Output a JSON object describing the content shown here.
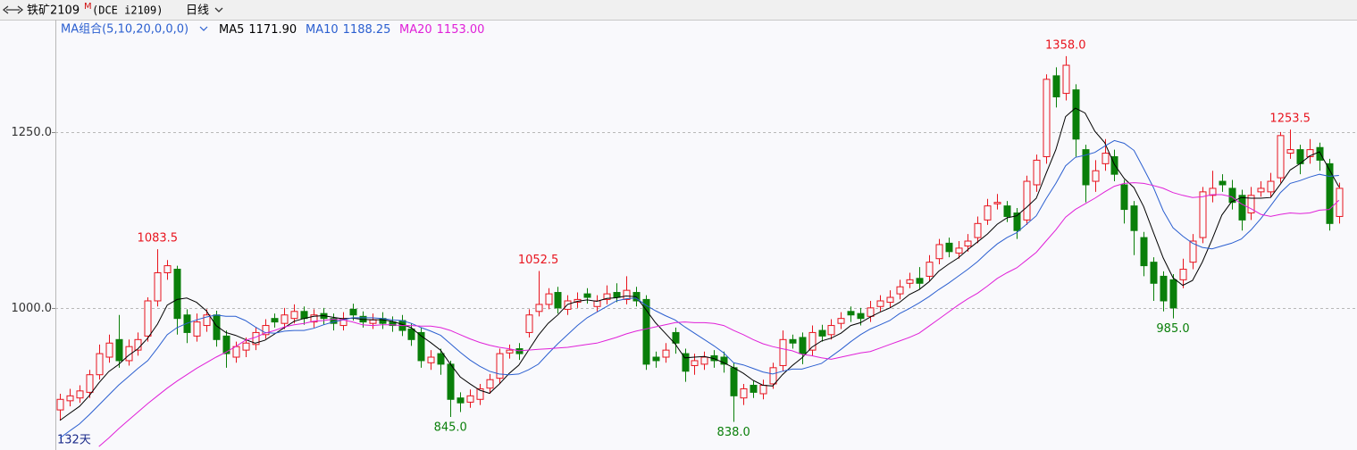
{
  "header": {
    "title": "铁矿2109",
    "badge": "M",
    "code": "(DCE i2109)",
    "period": "日线"
  },
  "chart_data": {
    "type": "candlestick",
    "indicator": "MA组合(5,10,20,0,0,0)",
    "span_label": "132天",
    "open": [
      855,
      868,
      872,
      880,
      905,
      930,
      955,
      925,
      940,
      960,
      1010,
      1050,
      1055,
      990,
      960,
      975,
      990,
      960,
      930,
      940,
      948,
      962,
      985,
      978,
      985,
      995,
      980,
      992,
      985,
      975,
      998,
      988,
      978,
      985,
      980,
      982,
      970,
      965,
      922,
      935,
      920,
      872,
      866,
      870,
      886,
      900,
      936,
      942,
      965,
      995,
      1005,
      1022,
      998,
      1008,
      1020,
      1002,
      1012,
      1022,
      1012,
      1022,
      1012,
      930,
      930,
      965,
      935,
      918,
      920,
      932,
      930,
      915,
      872,
      890,
      878,
      892,
      918,
      955,
      958,
      940,
      968,
      962,
      978,
      995,
      992,
      988,
      1002,
      1008,
      1020,
      1035,
      1042,
      1045,
      1070,
      1092,
      1078,
      1088,
      1100,
      1125,
      1148,
      1145,
      1135,
      1125,
      1175,
      1215,
      1330,
      1305,
      1310,
      1225,
      1180,
      1205,
      1215,
      1175,
      1145,
      1100,
      1065,
      1045,
      1040,
      1040,
      1065,
      1100,
      1160,
      1180,
      1170,
      1160,
      1135,
      1165,
      1165,
      1185,
      1220,
      1225,
      1215,
      1228,
      1205,
      1130
    ],
    "high": [
      878,
      885,
      890,
      912,
      948,
      962,
      990,
      955,
      965,
      1015,
      1083.5,
      1068,
      1060,
      998,
      992,
      998,
      996,
      968,
      952,
      958,
      972,
      984,
      992,
      1000,
      1005,
      1002,
      998,
      1000,
      992,
      994,
      1006,
      995,
      992,
      994,
      988,
      990,
      978,
      972,
      940,
      942,
      925,
      880,
      884,
      892,
      906,
      942,
      948,
      950,
      998,
      1052.5,
      1028,
      1030,
      1018,
      1022,
      1028,
      1018,
      1032,
      1035,
      1045,
      1030,
      1018,
      938,
      950,
      972,
      942,
      935,
      938,
      940,
      938,
      922,
      892,
      896,
      898,
      922,
      968,
      962,
      965,
      975,
      976,
      984,
      994,
      1002,
      1000,
      1010,
      1018,
      1025,
      1040,
      1050,
      1058,
      1075,
      1098,
      1100,
      1095,
      1105,
      1130,
      1155,
      1162,
      1152,
      1142,
      1188,
      1218,
      1332,
      1342,
      1358,
      1318,
      1232,
      1210,
      1240,
      1225,
      1182,
      1152,
      1108,
      1072,
      1052,
      1048,
      1070,
      1105,
      1172,
      1195,
      1190,
      1182,
      1168,
      1172,
      1180,
      1192,
      1250,
      1253.5,
      1232,
      1240,
      1235,
      1212,
      1178
    ],
    "low": [
      840,
      860,
      865,
      872,
      898,
      922,
      915,
      918,
      932,
      952,
      1002,
      1040,
      962,
      950,
      952,
      966,
      945,
      915,
      922,
      930,
      940,
      956,
      972,
      970,
      978,
      976,
      972,
      976,
      968,
      968,
      982,
      972,
      970,
      970,
      966,
      960,
      946,
      915,
      912,
      905,
      845,
      852,
      858,
      862,
      878,
      892,
      928,
      926,
      958,
      988,
      998,
      992,
      990,
      1000,
      1006,
      995,
      1005,
      1008,
      1005,
      1002,
      912,
      915,
      922,
      935,
      895,
      905,
      912,
      915,
      908,
      838,
      862,
      872,
      870,
      885,
      910,
      942,
      920,
      932,
      952,
      955,
      970,
      980,
      975,
      980,
      995,
      1000,
      1012,
      1028,
      1026,
      1038,
      1062,
      1072,
      1070,
      1080,
      1092,
      1118,
      1140,
      1122,
      1098,
      1118,
      1165,
      1205,
      1285,
      1295,
      1215,
      1150,
      1165,
      1195,
      1180,
      1120,
      1075,
      1045,
      1010,
      995,
      985,
      1028,
      1055,
      1092,
      1150,
      1165,
      1140,
      1110,
      1125,
      1158,
      1158,
      1178,
      1212,
      1190,
      1205,
      1195,
      1110,
      1120
    ],
    "close": [
      870,
      875,
      882,
      905,
      935,
      950,
      925,
      945,
      955,
      1010,
      1050,
      1060,
      985,
      965,
      980,
      990,
      955,
      935,
      945,
      950,
      965,
      975,
      980,
      990,
      995,
      985,
      990,
      985,
      978,
      985,
      990,
      980,
      983,
      978,
      975,
      968,
      955,
      925,
      930,
      920,
      870,
      865,
      875,
      885,
      898,
      935,
      940,
      935,
      990,
      1005,
      1020,
      1000,
      1010,
      1012,
      1015,
      1010,
      1020,
      1015,
      1025,
      1010,
      920,
      925,
      940,
      950,
      910,
      925,
      930,
      925,
      920,
      875,
      885,
      880,
      890,
      915,
      955,
      950,
      935,
      965,
      960,
      975,
      985,
      990,
      985,
      1000,
      1010,
      1015,
      1030,
      1040,
      1035,
      1065,
      1090,
      1080,
      1085,
      1095,
      1120,
      1145,
      1150,
      1130,
      1110,
      1180,
      1210,
      1325,
      1300,
      1345,
      1240,
      1175,
      1195,
      1220,
      1190,
      1140,
      1110,
      1060,
      1035,
      1010,
      1000,
      1055,
      1095,
      1165,
      1170,
      1175,
      1150,
      1125,
      1160,
      1170,
      1180,
      1245,
      1225,
      1205,
      1225,
      1210,
      1120,
      1170
    ],
    "up_color": "#e8141e",
    "down_color": "#0a7f0a",
    "ylim": [
      798,
      1406
    ],
    "yticks": [
      {
        "value": 1000,
        "label": "1000.0"
      },
      {
        "value": 1250,
        "label": "1250.0"
      }
    ],
    "grid": true,
    "annotations": [
      {
        "index": 10,
        "at": "high",
        "label": "1083.5"
      },
      {
        "index": 40,
        "at": "low",
        "label": "845.0"
      },
      {
        "index": 49,
        "at": "high",
        "label": "1052.5"
      },
      {
        "index": 69,
        "at": "low",
        "label": "838.0"
      },
      {
        "index": 103,
        "at": "high",
        "label": "1358.0"
      },
      {
        "index": 114,
        "at": "low",
        "label": "985.0"
      },
      {
        "index": 126,
        "at": "high",
        "label": "1253.5"
      }
    ],
    "series": [
      {
        "name": "MA5",
        "color": "#000000",
        "last_label": "1171.90",
        "values": [
          840,
          850,
          860,
          875,
          893.4,
          909.4,
          919.4,
          932,
          942,
          957,
          977,
          1004,
          1012,
          1014,
          1008,
          996,
          975,
          965,
          961,
          955,
          950,
          954,
          963,
          972,
          981,
          985,
          988,
          989,
          986.6,
          984.6,
          985.6,
          983.6,
          983.2,
          983.2,
          981.2,
          976.8,
          971.8,
          960.2,
          950.6,
          939.6,
          920,
          902,
          892,
          883,
          878.6,
          891.6,
          906.6,
          918.6,
          939.6,
          961,
          978,
          990,
          1005,
          1009.4,
          1011.4,
          1009.4,
          1013.4,
          1014.4,
          1017,
          1016,
          998,
          979,
          964,
          949,
          929,
          930,
          931,
          928,
          922,
          915,
          907,
          897,
          890,
          889,
          905,
          918,
          929,
          944,
          953,
          957,
          964,
          975,
          979,
          987,
          994,
          1000,
          1008,
          1019,
          1026,
          1037,
          1052,
          1062,
          1071,
          1083,
          1094,
          1105,
          1119,
          1128,
          1131,
          1143,
          1156,
          1191,
          1225,
          1272,
          1284,
          1277,
          1251,
          1235,
          1204,
          1184,
          1171,
          1144,
          1107,
          1071,
          1043,
          1032,
          1039,
          1065,
          1097,
          1132,
          1151,
          1157,
          1156,
          1156,
          1157,
          1176,
          1196,
          1205,
          1216,
          1222,
          1197,
          1171.9
        ]
      },
      {
        "name": "MA10",
        "color": "#2b5fd0",
        "last_label": "1188.25",
        "values": [
          815,
          825,
          835,
          848,
          862,
          876,
          890,
          902,
          914,
          925,
          943,
          962,
          972,
          978,
          983,
          987,
          990,
          988,
          988,
          982,
          973,
          965,
          964,
          967,
          968,
          968,
          971,
          976,
          980,
          983,
          986,
          986,
          986,
          985,
          983,
          982,
          978,
          972,
          967,
          961,
          949,
          937,
          926,
          917,
          910,
          906,
          905,
          906,
          912,
          920,
          935,
          949,
          962,
          975,
          986,
          994,
          1002,
          1010,
          1013,
          1014,
          1004,
          996,
          989,
          983,
          973,
          964,
          955,
          946,
          936,
          922,
          919,
          914,
          909,
          906,
          910,
          913,
          913,
          917,
          921,
          931,
          941,
          952,
          962,
          970,
          976,
          982,
          992,
          999,
          1007,
          1016,
          1026,
          1035,
          1045,
          1055,
          1066,
          1079,
          1091,
          1100,
          1107,
          1119,
          1131,
          1155,
          1177,
          1202,
          1214,
          1217,
          1221,
          1230,
          1238,
          1234,
          1224,
          1198,
          1171,
          1138,
          1114,
          1102,
          1092,
          1086,
          1084,
          1088,
          1092,
          1098,
          1111,
          1127,
          1145,
          1164,
          1177,
          1181,
          1186,
          1190,
          1187,
          1188.25
        ]
      },
      {
        "name": "MA20",
        "color": "#e020d8",
        "last_label": "1153.00",
        "values": [
          null,
          null,
          null,
          null,
          803,
          815,
          828,
          840,
          852,
          864,
          875,
          886,
          896,
          905,
          914,
          922,
          930,
          937,
          945,
          954,
          958,
          964,
          968,
          973,
          976,
          978,
          981,
          982,
          984,
          983,
          980,
          976,
          975,
          976,
          976,
          975,
          975,
          974,
          974,
          972,
          968,
          962,
          956,
          951,
          947,
          944,
          942,
          939,
          940,
          941,
          942,
          943,
          944,
          946,
          948,
          950,
          954,
          958,
          963,
          967,
          970,
          973,
          976,
          979,
          980,
          979,
          979,
          978,
          975,
          968,
          962,
          955,
          949,
          945,
          942,
          939,
          934,
          932,
          929,
          927,
          930,
          933,
          936,
          938,
          943,
          948,
          953,
          958,
          964,
          974,
          984,
          994,
          1004,
          1013,
          1021,
          1031,
          1042,
          1050,
          1057,
          1068,
          1079,
          1095,
          1111,
          1129,
          1140,
          1148,
          1156,
          1165,
          1173,
          1177,
          1178,
          1177,
          1174,
          1170,
          1164,
          1160,
          1157,
          1158,
          1161,
          1161,
          1158,
          1148,
          1141,
          1133,
          1130,
          1133,
          1135,
          1134,
          1135,
          1139,
          1140,
          1153
        ]
      }
    ]
  }
}
